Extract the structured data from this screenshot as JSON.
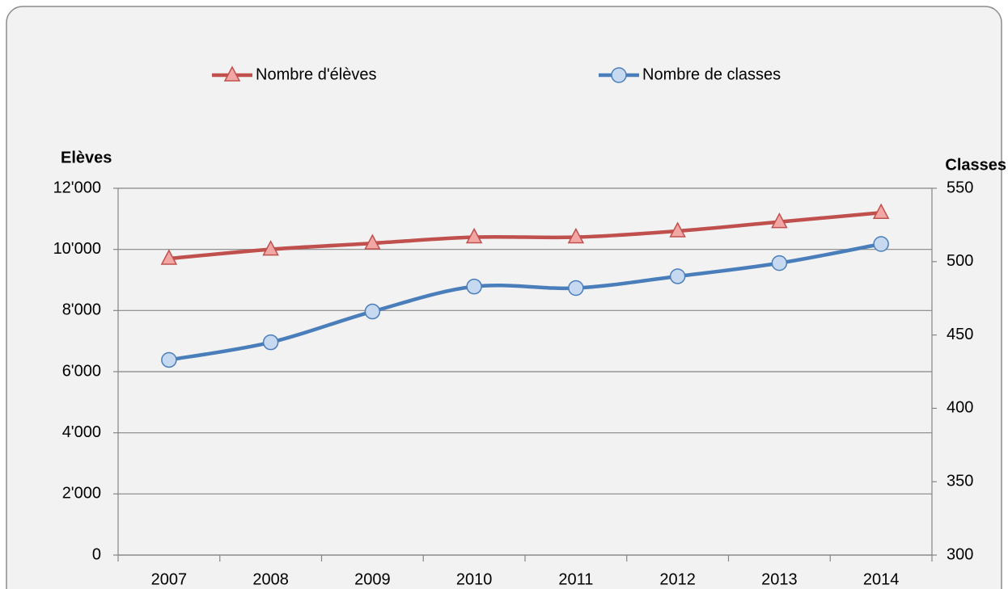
{
  "chart_data": {
    "type": "line",
    "smooth": true,
    "grid": true,
    "y_label": "Elèves",
    "y2_label": "Classes",
    "categories": [
      "2007",
      "2008",
      "2009",
      "2010",
      "2011",
      "2012",
      "2013",
      "2014"
    ],
    "series": [
      {
        "name": "Nombre d'élèves",
        "color": "#c0504d",
        "marker": "triangle",
        "marker_fill": "#f2a7a5",
        "values": [
          9700,
          10000,
          10200,
          10400,
          10400,
          10600,
          10900,
          11200
        ]
      },
      {
        "name": "Nombre de classes",
        "color": "#4a7ebb",
        "marker": "circle",
        "marker_fill": "#c6d9f1",
        "axis": "y2",
        "values": [
          433,
          445,
          466,
          483,
          482,
          490,
          499,
          512
        ]
      }
    ],
    "ylim": [
      0,
      12000
    ],
    "yticks": [
      0,
      {
        "value": 2000,
        "label": "2'000"
      },
      {
        "value": 4000,
        "label": "4'000"
      },
      {
        "value": 6000,
        "label": "6'000"
      },
      {
        "value": 8000,
        "label": "8'000"
      },
      {
        "value": 10000,
        "label": "10'000"
      },
      {
        "value": 12000,
        "label": "12'000"
      }
    ],
    "y2lim": [
      300,
      550
    ],
    "y2ticks": [
      300,
      350,
      400,
      450,
      500,
      550
    ],
    "legend": "top"
  }
}
